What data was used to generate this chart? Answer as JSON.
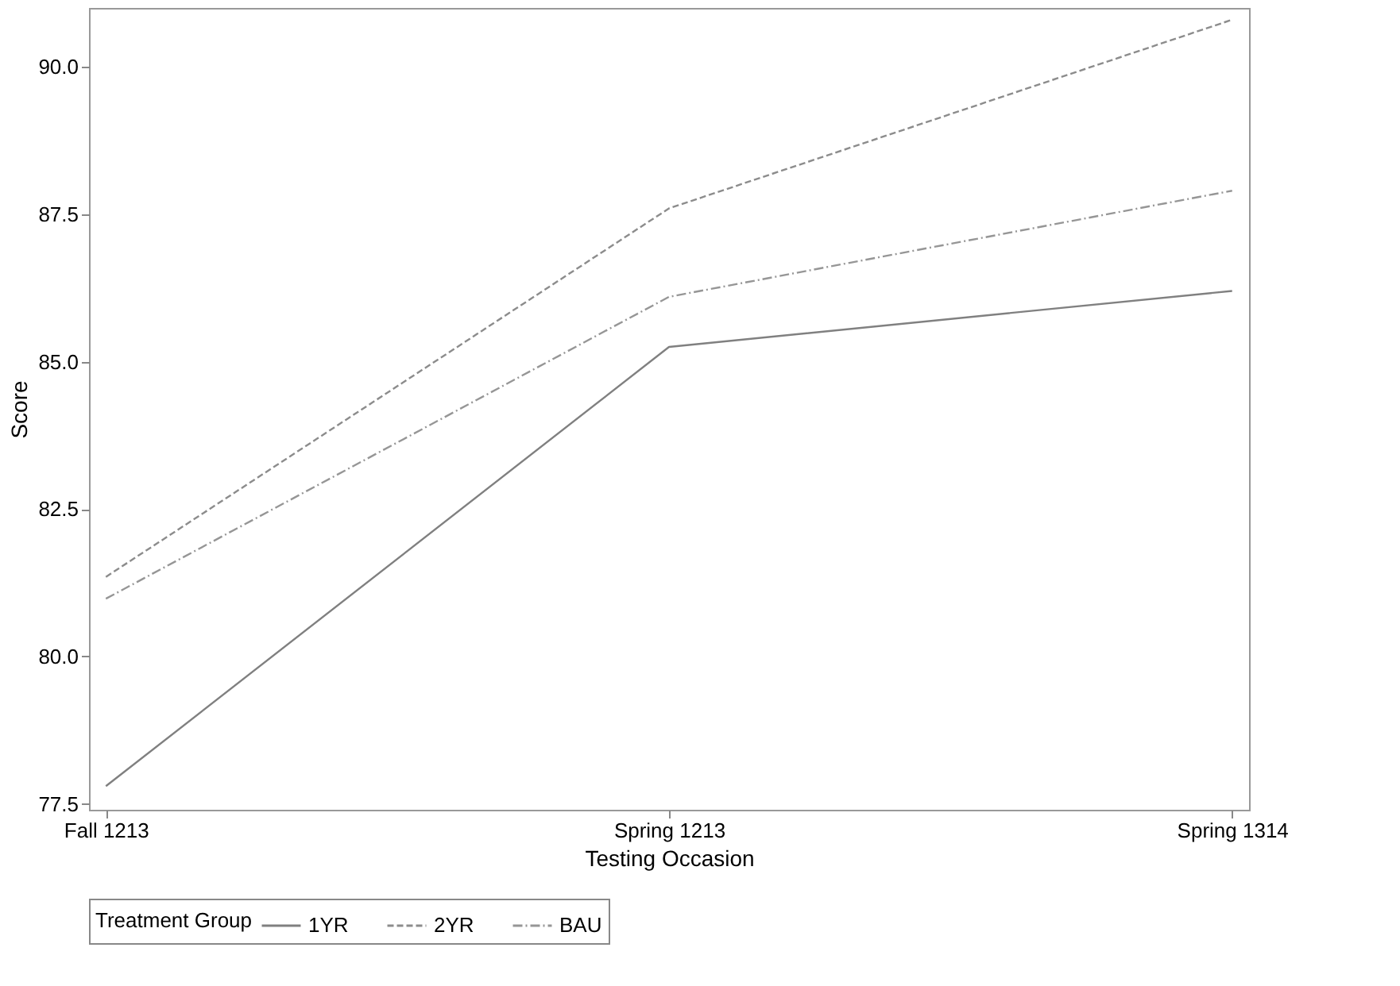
{
  "chart_data": {
    "type": "line",
    "xlabel": "Testing Occasion",
    "ylabel": "Score",
    "legend_title": "Treatment Group",
    "categories": [
      "Fall 1213",
      "Spring 1213",
      "Spring 1314"
    ],
    "series": [
      {
        "name": "1YR",
        "color": "#808080",
        "line_style": "solid",
        "values": [
          77.8,
          85.25,
          86.2
        ]
      },
      {
        "name": "2YR",
        "color": "#8c8c8c",
        "line_style": "dashed",
        "values": [
          81.35,
          87.6,
          90.8
        ]
      },
      {
        "name": "BAU",
        "color": "#969696",
        "line_style": "dashdot",
        "values": [
          80.98,
          86.1,
          87.9
        ]
      }
    ],
    "ylim": [
      77.4,
      91.0
    ],
    "yticks": [
      77.5,
      {
        "value": 80,
        "label": "80.0"
      },
      82.5,
      {
        "value": 85,
        "label": "85.0"
      },
      87.5,
      {
        "value": 90,
        "label": "90.0"
      }
    ],
    "grid": false,
    "legend": "bottom",
    "marker": "none"
  }
}
